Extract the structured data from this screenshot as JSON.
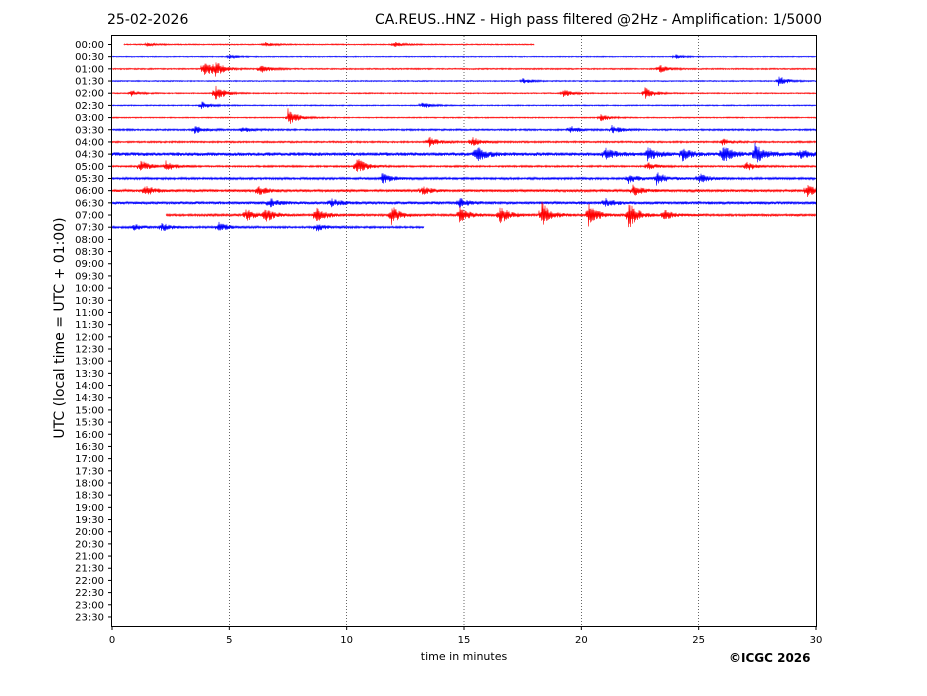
{
  "header": {
    "date": "25-02-2026",
    "title": "CA.REUS..HNZ - High pass filtered @2Hz - Amplification: 1/5000"
  },
  "footer": {
    "copyright": "©ICGC 2026"
  },
  "chart_data": {
    "type": "line",
    "title": "CA.REUS..HNZ - High pass filtered @2Hz - Amplification: 1/5000",
    "xlabel": "time in minutes",
    "ylabel": "UTC (local time = UTC + 01:00)",
    "xlim": [
      0,
      30
    ],
    "xticks": [
      0,
      5,
      10,
      15,
      20,
      25,
      30
    ],
    "grid": "vertical dotted lines at 5-minute marks",
    "row_labels": [
      "00:00",
      "00:30",
      "01:00",
      "01:30",
      "02:00",
      "02:30",
      "03:00",
      "03:30",
      "04:00",
      "04:30",
      "05:00",
      "05:30",
      "06:00",
      "06:30",
      "07:00",
      "07:30",
      "08:00",
      "08:30",
      "09:00",
      "09:30",
      "10:00",
      "10:30",
      "11:00",
      "11:30",
      "12:00",
      "12:30",
      "13:00",
      "13:30",
      "14:00",
      "14:30",
      "15:00",
      "15:30",
      "16:00",
      "16:30",
      "17:00",
      "17:30",
      "18:00",
      "18:30",
      "19:00",
      "19:30",
      "20:00",
      "20:30",
      "21:00",
      "21:30",
      "22:00",
      "22:30",
      "23:00",
      "23:30"
    ],
    "colors": {
      "even_rows": "#ff0000",
      "odd_rows": "#0000ff"
    },
    "traces": [
      {
        "row": "00:00",
        "start_min": 0.5,
        "end_min": 18,
        "noise": 0.6,
        "events": [
          [
            1.5,
            2
          ],
          [
            6.5,
            2.5
          ],
          [
            12,
            2.5
          ]
        ]
      },
      {
        "row": "00:30",
        "start_min": 0,
        "end_min": 30,
        "noise": 0.5,
        "events": [
          [
            5,
            2
          ],
          [
            24,
            2
          ]
        ]
      },
      {
        "row": "01:00",
        "start_min": 0,
        "end_min": 30,
        "noise": 0.7,
        "events": [
          [
            3.9,
            9
          ],
          [
            4.4,
            6
          ],
          [
            6.3,
            5
          ],
          [
            23.3,
            4
          ]
        ]
      },
      {
        "row": "01:30",
        "start_min": 0,
        "end_min": 30,
        "noise": 0.6,
        "events": [
          [
            17.5,
            3
          ],
          [
            28.4,
            5
          ]
        ]
      },
      {
        "row": "02:00",
        "start_min": 0,
        "end_min": 30,
        "noise": 0.6,
        "events": [
          [
            0.8,
            3
          ],
          [
            4.4,
            8
          ],
          [
            19.2,
            4
          ],
          [
            22.7,
            6
          ]
        ]
      },
      {
        "row": "02:30",
        "start_min": 0,
        "end_min": 30,
        "noise": 0.6,
        "events": [
          [
            3.8,
            4
          ],
          [
            13.2,
            3
          ]
        ]
      },
      {
        "row": "03:00",
        "start_min": 0,
        "end_min": 30,
        "noise": 0.6,
        "events": [
          [
            7.5,
            9
          ],
          [
            20.8,
            4
          ]
        ]
      },
      {
        "row": "03:30",
        "start_min": 0,
        "end_min": 30,
        "noise": 0.9,
        "events": [
          [
            3.5,
            4
          ],
          [
            5.5,
            3
          ],
          [
            19.5,
            4
          ],
          [
            21.3,
            4
          ]
        ]
      },
      {
        "row": "04:00",
        "start_min": 0,
        "end_min": 30,
        "noise": 0.9,
        "events": [
          [
            13.5,
            5
          ],
          [
            15.3,
            5
          ],
          [
            26,
            3
          ]
        ]
      },
      {
        "row": "04:30",
        "start_min": 0,
        "end_min": 30,
        "noise": 1.8,
        "events": [
          [
            15.5,
            9
          ],
          [
            21,
            6
          ],
          [
            22.8,
            7
          ],
          [
            24.3,
            6
          ],
          [
            26,
            9
          ],
          [
            27.4,
            10
          ],
          [
            29.3,
            5
          ]
        ]
      },
      {
        "row": "05:00",
        "start_min": 0,
        "end_min": 30,
        "noise": 0.9,
        "events": [
          [
            1.2,
            6
          ],
          [
            2.3,
            5
          ],
          [
            10.4,
            9
          ],
          [
            22.8,
            4
          ],
          [
            27,
            5
          ]
        ]
      },
      {
        "row": "05:30",
        "start_min": 0,
        "end_min": 30,
        "noise": 1.2,
        "events": [
          [
            11.5,
            5
          ],
          [
            22,
            5
          ],
          [
            23.2,
            6
          ],
          [
            25,
            5
          ]
        ]
      },
      {
        "row": "06:00",
        "start_min": 0,
        "end_min": 30,
        "noise": 1.3,
        "events": [
          [
            1.4,
            5
          ],
          [
            6.2,
            5
          ],
          [
            13.2,
            4
          ],
          [
            22.2,
            5
          ],
          [
            29.6,
            6
          ]
        ]
      },
      {
        "row": "06:30",
        "start_min": 0,
        "end_min": 30,
        "noise": 1.5,
        "events": [
          [
            6.7,
            4
          ],
          [
            9.3,
            4
          ],
          [
            14.8,
            4
          ],
          [
            21,
            4
          ]
        ]
      },
      {
        "row": "07:00",
        "start_min": 2.3,
        "end_min": 30,
        "noise": 1.2,
        "events": [
          [
            5.7,
            6
          ],
          [
            6.5,
            7
          ],
          [
            8.7,
            8
          ],
          [
            11.9,
            9
          ],
          [
            14.8,
            8
          ],
          [
            16.5,
            10
          ],
          [
            18.3,
            13
          ],
          [
            20.3,
            11
          ],
          [
            22,
            14
          ],
          [
            23.5,
            5
          ]
        ]
      },
      {
        "row": "07:30",
        "start_min": 0,
        "end_min": 13.3,
        "noise": 1.1,
        "events": [
          [
            0.9,
            3
          ],
          [
            2.1,
            4
          ],
          [
            4.5,
            5
          ],
          [
            8.7,
            4
          ]
        ]
      }
    ]
  }
}
